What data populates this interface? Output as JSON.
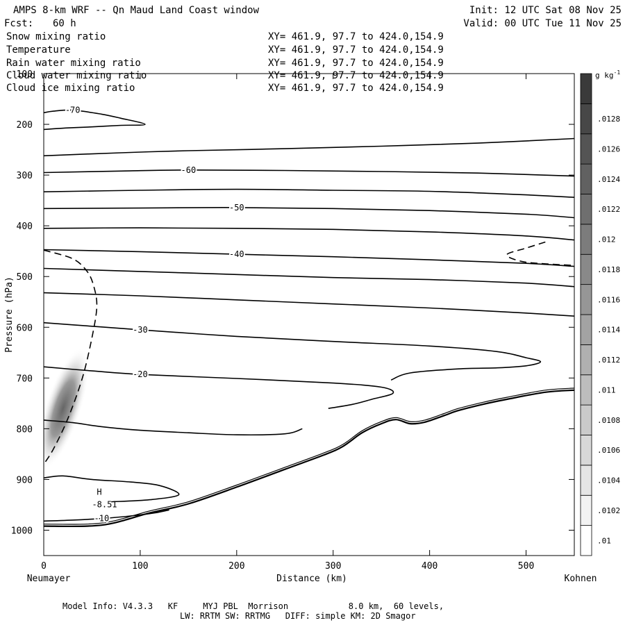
{
  "header": {
    "title": "AMPS 8-km WRF -- Qn Maud Land Coast window",
    "init": "Init: 12 UTC Sat 08 Nov 25",
    "fcst_label": "Fcst:",
    "fcst_value": "60 h",
    "valid": "Valid: 00 UTC Tue 11 Nov 25"
  },
  "fields": [
    {
      "name": "Snow mixing ratio",
      "xy": "XY= 461.9, 97.7 to 424.0,154.9",
      "color": "#000000"
    },
    {
      "name": "Temperature",
      "xy": "XY= 461.9, 97.7 to 424.0,154.9",
      "color": "#000000"
    },
    {
      "name": "Rain water mixing ratio",
      "xy": "XY= 461.9, 97.7 to 424.0,154.9",
      "color": "#e00000"
    },
    {
      "name": "Cloud water mixing ratio",
      "xy": "XY= 461.9, 97.7 to 424.0,154.9",
      "color": "#0000c8"
    },
    {
      "name": "Cloud ice mixing ratio",
      "xy": "XY= 461.9, 97.7 to 424.0,154.9",
      "color": "#000000"
    }
  ],
  "chart_data": {
    "type": "cross-section contour",
    "xlabel": "Distance (km)",
    "ylabel": "Pressure (hPa)",
    "xlim": [
      0,
      550
    ],
    "ylim": [
      1050,
      100
    ],
    "x_ticks": [
      0,
      100,
      200,
      300,
      400,
      500
    ],
    "y_ticks": [
      100,
      200,
      300,
      400,
      500,
      600,
      700,
      800,
      900,
      1000
    ],
    "left_endpoint": "Neumayer",
    "right_endpoint": "Kohnen",
    "colorbar": {
      "unit": "g kg",
      "unit_exp": "-1",
      "levels": [
        0.01,
        0.0102,
        0.0104,
        0.0106,
        0.0108,
        0.011,
        0.0112,
        0.0114,
        0.0116,
        0.0118,
        0.012,
        0.0122,
        0.0124,
        0.0126,
        0.0128
      ],
      "labels": [
        ".01",
        ".0102",
        ".0104",
        ".0106",
        ".0108",
        ".011",
        ".0112",
        ".0114",
        ".0116",
        ".0118",
        ".012",
        ".0122",
        ".0124",
        ".0126",
        ".0128"
      ]
    },
    "temperature_contours": [
      {
        "label": "-70",
        "points": [
          [
            0,
            177
          ],
          [
            10,
            174
          ],
          [
            30,
            172
          ],
          [
            60,
            180
          ],
          [
            80,
            188
          ],
          [
            105,
            200
          ],
          [
            80,
            202
          ],
          [
            50,
            205
          ],
          [
            25,
            207
          ],
          [
            0,
            210
          ]
        ]
      },
      {
        "label": "",
        "points": [
          [
            0,
            262
          ],
          [
            80,
            256
          ],
          [
            150,
            252
          ],
          [
            250,
            248
          ],
          [
            350,
            243
          ],
          [
            450,
            237
          ],
          [
            550,
            228
          ]
        ]
      },
      {
        "label": "-60",
        "points": [
          [
            0,
            295
          ],
          [
            80,
            292
          ],
          [
            150,
            290
          ],
          [
            250,
            291
          ],
          [
            350,
            293
          ],
          [
            450,
            296
          ],
          [
            550,
            302
          ]
        ]
      },
      {
        "label": "",
        "points": [
          [
            0,
            333
          ],
          [
            100,
            330
          ],
          [
            200,
            328
          ],
          [
            300,
            330
          ],
          [
            400,
            332
          ],
          [
            500,
            339
          ],
          [
            550,
            344
          ]
        ]
      },
      {
        "label": "-50",
        "points": [
          [
            0,
            366
          ],
          [
            100,
            365
          ],
          [
            200,
            364
          ],
          [
            300,
            366
          ],
          [
            400,
            370
          ],
          [
            500,
            377
          ],
          [
            550,
            384
          ]
        ]
      },
      {
        "label": "",
        "points": [
          [
            0,
            405
          ],
          [
            100,
            404
          ],
          [
            200,
            405
          ],
          [
            300,
            407
          ],
          [
            400,
            412
          ],
          [
            500,
            420
          ],
          [
            550,
            428
          ]
        ]
      },
      {
        "label": "-40",
        "points": [
          [
            0,
            447
          ],
          [
            100,
            451
          ],
          [
            200,
            456
          ],
          [
            300,
            461
          ],
          [
            400,
            467
          ],
          [
            500,
            474
          ],
          [
            550,
            480
          ]
        ]
      },
      {
        "label": "",
        "points": [
          [
            0,
            484
          ],
          [
            100,
            490
          ],
          [
            200,
            496
          ],
          [
            300,
            502
          ],
          [
            400,
            506
          ],
          [
            500,
            513
          ],
          [
            550,
            520
          ]
        ]
      },
      {
        "label": "",
        "points": [
          [
            0,
            532
          ],
          [
            100,
            538
          ],
          [
            200,
            546
          ],
          [
            300,
            554
          ],
          [
            400,
            562
          ],
          [
            500,
            572
          ],
          [
            550,
            578
          ]
        ]
      },
      {
        "label": "-30",
        "points": [
          [
            0,
            591
          ],
          [
            50,
            598
          ],
          [
            100,
            605
          ],
          [
            200,
            618
          ],
          [
            300,
            628
          ],
          [
            400,
            637
          ],
          [
            470,
            648
          ],
          [
            500,
            660
          ],
          [
            515,
            668
          ],
          [
            500,
            676
          ],
          [
            470,
            680
          ],
          [
            430,
            682
          ],
          [
            380,
            690
          ],
          [
            360,
            704
          ]
        ]
      },
      {
        "label": "-20",
        "points": [
          [
            0,
            678
          ],
          [
            50,
            686
          ],
          [
            100,
            693
          ],
          [
            200,
            701
          ],
          [
            300,
            710
          ],
          [
            350,
            718
          ],
          [
            362,
            730
          ],
          [
            340,
            742
          ],
          [
            320,
            752
          ],
          [
            295,
            760
          ]
        ]
      },
      {
        "label": "",
        "points": [
          [
            0,
            783
          ],
          [
            30,
            788
          ],
          [
            60,
            796
          ],
          [
            100,
            803
          ],
          [
            150,
            808
          ],
          [
            200,
            812
          ],
          [
            250,
            810
          ],
          [
            268,
            800
          ]
        ]
      },
      {
        "label": "",
        "points": [
          [
            0,
            897
          ],
          [
            20,
            893
          ],
          [
            50,
            900
          ],
          [
            90,
            905
          ],
          [
            120,
            912
          ],
          [
            140,
            930
          ],
          [
            110,
            940
          ],
          [
            70,
            944
          ]
        ]
      },
      {
        "label": "-10",
        "points": [
          [
            0,
            982
          ],
          [
            30,
            980
          ],
          [
            60,
            977
          ],
          [
            90,
            972
          ],
          [
            115,
            966
          ],
          [
            130,
            960
          ]
        ]
      }
    ],
    "terrain": [
      [
        0,
        992
      ],
      [
        60,
        990
      ],
      [
        110,
        966
      ],
      [
        150,
        948
      ],
      [
        200,
        915
      ],
      [
        250,
        880
      ],
      [
        290,
        852
      ],
      [
        310,
        835
      ],
      [
        330,
        808
      ],
      [
        350,
        790
      ],
      [
        365,
        782
      ],
      [
        380,
        790
      ],
      [
        395,
        787
      ],
      [
        415,
        774
      ],
      [
        430,
        764
      ],
      [
        455,
        752
      ],
      [
        480,
        742
      ],
      [
        520,
        728
      ],
      [
        550,
        724
      ]
    ],
    "snow_dashed_contour": [
      [
        0,
        448
      ],
      [
        30,
        465
      ],
      [
        45,
        490
      ],
      [
        52,
        520
      ],
      [
        55,
        560
      ],
      [
        50,
        620
      ],
      [
        40,
        700
      ],
      [
        25,
        780
      ],
      [
        10,
        840
      ],
      [
        0,
        870
      ]
    ],
    "snow_dashed_contour_right": [
      [
        520,
        432
      ],
      [
        500,
        444
      ],
      [
        480,
        457
      ],
      [
        495,
        470
      ],
      [
        520,
        475
      ],
      [
        550,
        478
      ]
    ],
    "shaded_max": {
      "x": 20,
      "p": 760
    },
    "annotations": [
      {
        "text": "H",
        "x": 55,
        "p": 930
      },
      {
        "text": "-8.51",
        "x": 50,
        "p": 955
      }
    ]
  },
  "model_info": {
    "line1": "Model Info: V4.3.3   KF     MYJ PBL  Morrison            8.0 km,  60 levels,",
    "line2": "LW: RRTM SW: RRTMG   DIFF: simple KM: 2D Smagor"
  }
}
